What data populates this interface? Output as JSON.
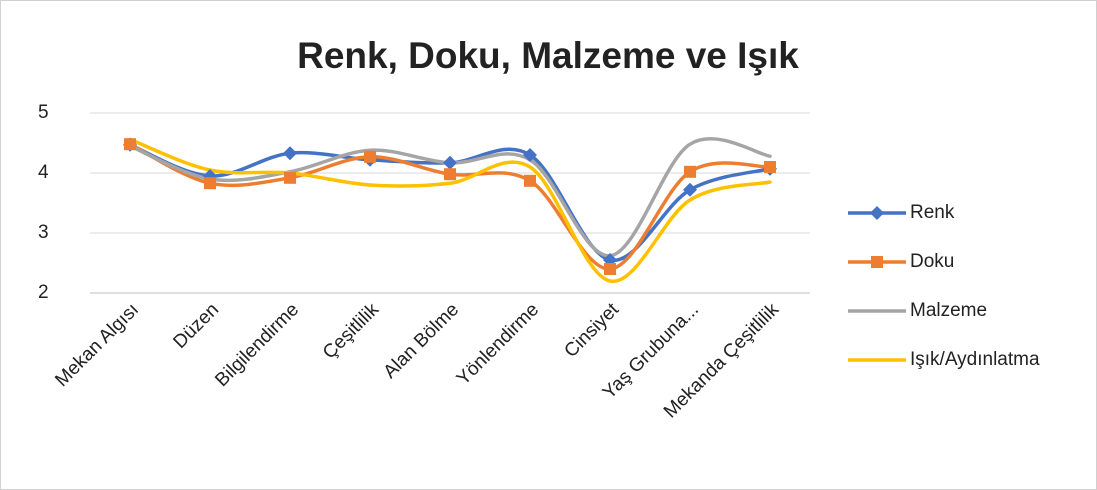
{
  "chart_data": {
    "type": "line",
    "title": "Renk, Doku, Malzeme ve Işık",
    "categories": [
      "Mekan Algısı",
      "Düzen",
      "Bilgilendirme",
      "Çeşitlilik",
      "Alan Bölme",
      "Yönlendirme",
      "Cinsiyet",
      "Yaş Grubuna...",
      "Mekanda Çeşitlilik"
    ],
    "series": [
      {
        "name": "Renk",
        "color": "#4472c4",
        "marker": "diamond",
        "values": [
          4.47,
          3.95,
          4.33,
          4.22,
          4.17,
          4.3,
          2.55,
          3.72,
          4.07
        ]
      },
      {
        "name": "Doku",
        "color": "#ed7d31",
        "marker": "square",
        "values": [
          4.48,
          3.83,
          3.92,
          4.27,
          3.98,
          3.87,
          2.4,
          4.02,
          4.1
        ]
      },
      {
        "name": "Malzeme",
        "color": "#a5a5a5",
        "values": [
          4.45,
          3.9,
          4.02,
          4.38,
          4.17,
          4.22,
          2.62,
          4.48,
          4.28
        ]
      },
      {
        "name": "Işık/Aydınlatma",
        "color": "#ffc000",
        "values": [
          4.56,
          4.05,
          4.0,
          3.8,
          3.83,
          4.1,
          2.2,
          3.55,
          3.85
        ]
      }
    ],
    "ylim": [
      2,
      5
    ],
    "yticks": [
      2,
      3,
      4,
      5
    ],
    "grid": true,
    "smooth": true,
    "legend": "right"
  }
}
